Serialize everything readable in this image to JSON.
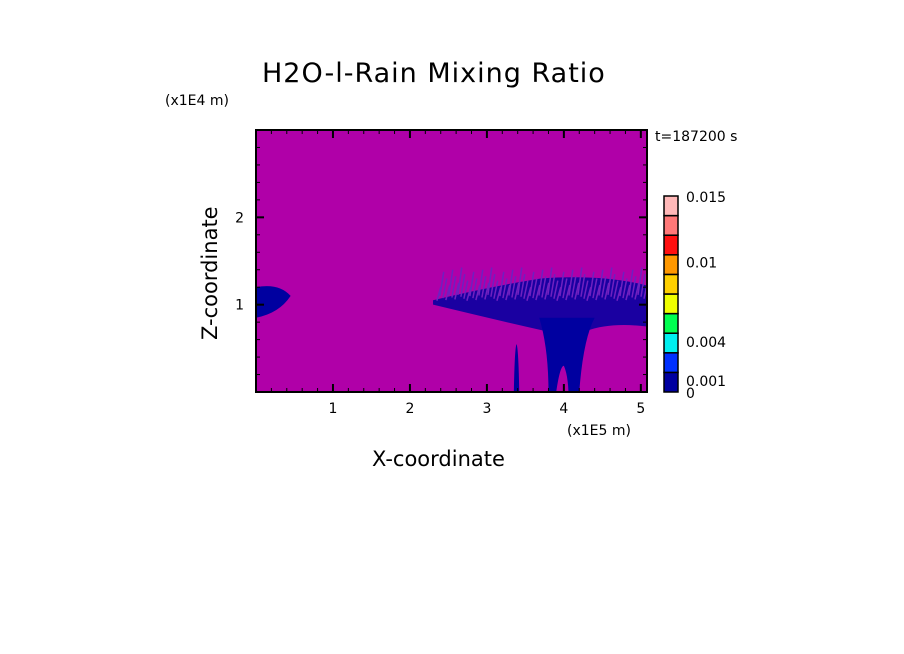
{
  "chart_data": {
    "type": "heatmap",
    "title": "H2O-l-Rain Mixing Ratio",
    "xlabel": "X-coordinate",
    "ylabel": "Z-coordinate",
    "x_unit": "(x1E5 m)",
    "y_unit": "(x1E4 m)",
    "annotation": "t=187200 s",
    "xlim": [
      0,
      5.08
    ],
    "ylim": [
      0,
      3.0
    ],
    "x_ticks": [
      "1",
      "2",
      "3",
      "4",
      "5"
    ],
    "y_ticks": [
      "1",
      "2"
    ],
    "background_color": "#b000a8",
    "colorbar": {
      "levels": [
        0,
        0.001,
        0.004,
        0.01,
        0.015
      ],
      "labels": [
        "0",
        "0.001",
        "0.004",
        "0.01",
        "0.015"
      ],
      "colors": [
        "#0000a0",
        "#0030ff",
        "#00f0f0",
        "#00ff50",
        "#f0ff00",
        "#ffd000",
        "#ff9800",
        "#ff1010",
        "#ff7878",
        "#ffb8b8"
      ]
    },
    "features": [
      {
        "region": "left edge layer",
        "x_range": [
          0,
          0.45
        ],
        "z_range": [
          0.85,
          1.2
        ],
        "value": "near 0"
      },
      {
        "region": "anvil layer",
        "x_range": [
          2.3,
          5.08
        ],
        "z_range": [
          0.75,
          1.3
        ],
        "value": "near 0"
      },
      {
        "region": "narrow column",
        "x_range": [
          3.35,
          3.42
        ],
        "z_range": [
          0,
          0.55
        ],
        "value": "near 0"
      },
      {
        "region": "main column",
        "x_range": [
          3.7,
          4.3
        ],
        "z_range": [
          0,
          1.0
        ],
        "value": "near 0"
      }
    ]
  }
}
